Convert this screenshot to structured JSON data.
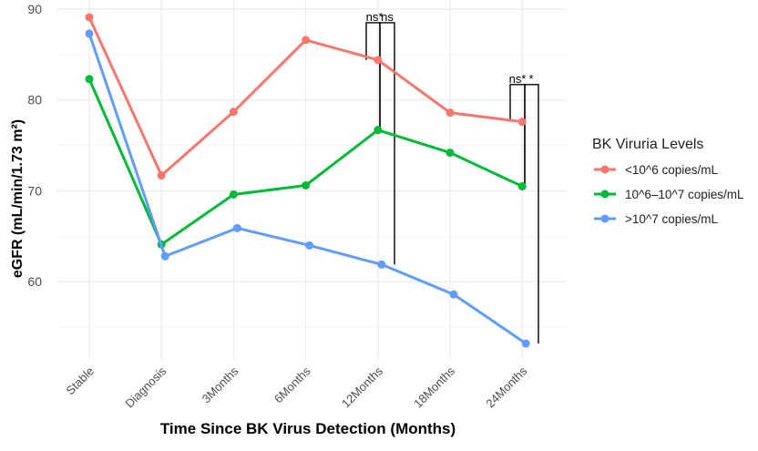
{
  "chart_data": {
    "type": "line",
    "title": "",
    "xlabel": "Time Since BK Virus Detection (Months)",
    "ylabel": "eGFR (mL/min/1.73 m²)",
    "categories": [
      "Stable",
      "Diagnosis",
      "3Months",
      "6Months",
      "12Months",
      "18Months",
      "24Months"
    ],
    "yticks": [
      60,
      70,
      80,
      90
    ],
    "ylim": [
      51.5,
      91
    ],
    "grid": true,
    "legend": {
      "title": "BK Viruria Levels",
      "placement": "right"
    },
    "series": [
      {
        "name": "<10^6 copies/mL",
        "color": "#F8766D",
        "values": [
          89.1,
          71.7,
          78.7,
          86.6,
          84.4,
          78.6,
          77.6
        ]
      },
      {
        "name": "10^6–10^7 copies/mL",
        "color": "#00BA38",
        "values": [
          82.3,
          64.1,
          69.6,
          70.6,
          76.7,
          74.2,
          70.5
        ]
      },
      {
        "name": ">10^7 copies/mL",
        "color": "#619CFF",
        "values": [
          87.3,
          62.8,
          65.9,
          64.0,
          61.9,
          58.6,
          53.2
        ]
      }
    ],
    "annotations": [
      {
        "category": "12Months",
        "label": "ns*",
        "from_value": 84.4,
        "to_value": 76.7,
        "bracket_top": 88.5
      },
      {
        "category": "12Months",
        "label": "ns",
        "from_value": 76.7,
        "to_value": 61.9,
        "bracket_top": 88.5
      },
      {
        "category": "24Months",
        "label": "ns*",
        "from_value": 77.6,
        "to_value": 70.5,
        "bracket_top": 81.7
      },
      {
        "category": "24Months",
        "label": "*",
        "from_value": 70.5,
        "to_value": 53.2,
        "bracket_top": 81.7
      }
    ]
  }
}
